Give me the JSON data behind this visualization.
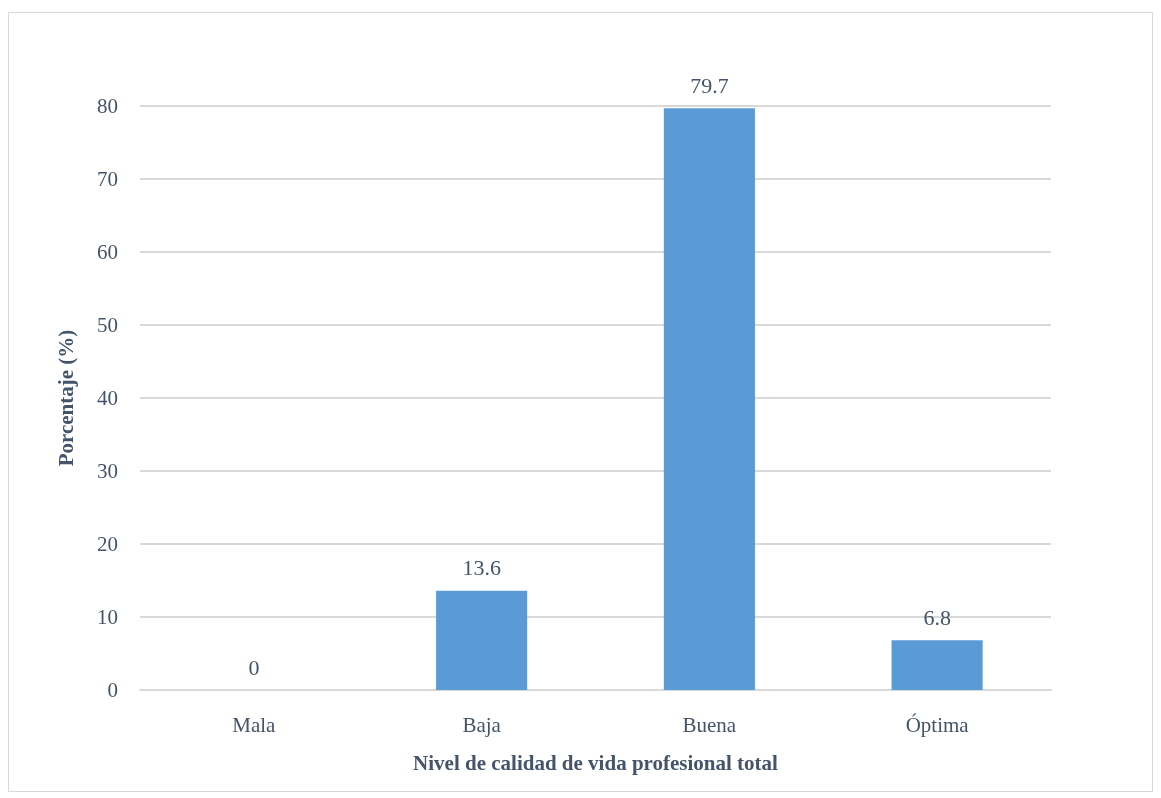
{
  "chart_data": {
    "type": "bar",
    "categories": [
      "Mala",
      "Baja",
      "Buena",
      "Óptima"
    ],
    "values": [
      0,
      13.6,
      79.7,
      6.8
    ],
    "color": "#5b9bd5",
    "xlabel": "Nivel de calidad de vida profesional total",
    "ylabel": "Porcentaje (%)",
    "ylim": [
      0,
      80
    ],
    "yticks": [
      0,
      10,
      20,
      30,
      40,
      50,
      60,
      70,
      80
    ],
    "grid": "y",
    "data_labels": true
  }
}
